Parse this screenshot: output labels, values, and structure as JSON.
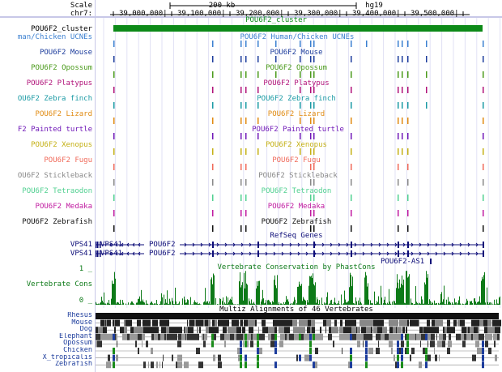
{
  "header": {
    "scale_label": "Scale",
    "scale_value": "200 kb",
    "assembly": "hg19",
    "chrom_label": "chr7:",
    "positions": [
      "39,000,000|",
      "39,100,000|",
      "39,200,000|",
      "39,300,000|",
      "39,400,000|",
      "39,500,000|"
    ]
  },
  "cluster": {
    "label": "POU6F2_cluster",
    "name": "POU6F2_cluster",
    "color": "#0d8a18"
  },
  "tracks": [
    {
      "label": "man/Chicken UCNEs",
      "name": "POU6F2 Human/Chicken UCNEs",
      "color": "#3a7fd0"
    },
    {
      "label": "POU6F2 Mouse",
      "name": "POU6F2 Mouse",
      "color": "#1c3c9c"
    },
    {
      "label": "POU6F2 Opossum",
      "name": "POU6F2 Opossum",
      "color": "#4a9a1a"
    },
    {
      "label": "POU6F2 Platypus",
      "name": "POU6F2 Platypus",
      "color": "#b01078"
    },
    {
      "label": "OU6F2 Zebra finch",
      "name": "POU6F2 Zebra finch",
      "color": "#1a9aa4"
    },
    {
      "label": "POU6F2 Lizard",
      "name": "POU6F2 Lizard",
      "color": "#e08a10"
    },
    {
      "label": "F2 Painted turtle",
      "name": "POU6F2 Painted turtle",
      "color": "#7018b8"
    },
    {
      "label": "POU6F2 Xenopus",
      "name": "POU6F2 Xenopus",
      "color": "#c4b014"
    },
    {
      "label": "POU6F2 Fugu",
      "name": "POU6F2 Fugu",
      "color": "#f06a5a"
    },
    {
      "label": "OU6F2 Stickleback",
      "name": "POU6F2 Stickleback",
      "color": "#888888"
    },
    {
      "label": "POU6F2 Tetraodon",
      "name": "POU6F2 Tetraodon",
      "color": "#50d090"
    },
    {
      "label": "POU6F2 Medaka",
      "name": "POU6F2 Medaka",
      "color": "#c01aa0"
    },
    {
      "label": "POU6F2 Zebrafish",
      "name": "POU6F2 Zebrafish",
      "color": "#111111"
    }
  ],
  "refseq": {
    "title": "RefSeq Genes",
    "rows": [
      {
        "label": "VPS41",
        "gene_left": "VPS41",
        "gene_right": "POU6F2"
      },
      {
        "label": "VPS41",
        "gene_left": "VPS41",
        "gene_right": "POU6F2"
      }
    ],
    "extra_gene": "POU6F2-AS1",
    "color": "#0c0c78"
  },
  "conservation": {
    "title": "Vertebrate Conservation by PhastCons",
    "label": "Vertebrate Cons",
    "ymax_label": "1 _",
    "ymin_label": "0 _",
    "color": "#0d7a18"
  },
  "multiz": {
    "title": "Multiz Alignments of 46 Vertebrates",
    "species": [
      {
        "label": "Rhesus",
        "color": "#1c3c9c"
      },
      {
        "label": "Mouse",
        "color": "#1c3c9c"
      },
      {
        "label": "Dog",
        "color": "#1c3c9c"
      },
      {
        "label": "Elephant",
        "color": "#1c3c9c"
      },
      {
        "label": "Opossum",
        "color": "#1c3c9c"
      },
      {
        "label": "Chicken",
        "color": "#1c3c9c"
      },
      {
        "label": "X_tropicalis",
        "color": "#1c3c9c"
      },
      {
        "label": "Zebrafish",
        "color": "#1c3c9c"
      }
    ]
  }
}
